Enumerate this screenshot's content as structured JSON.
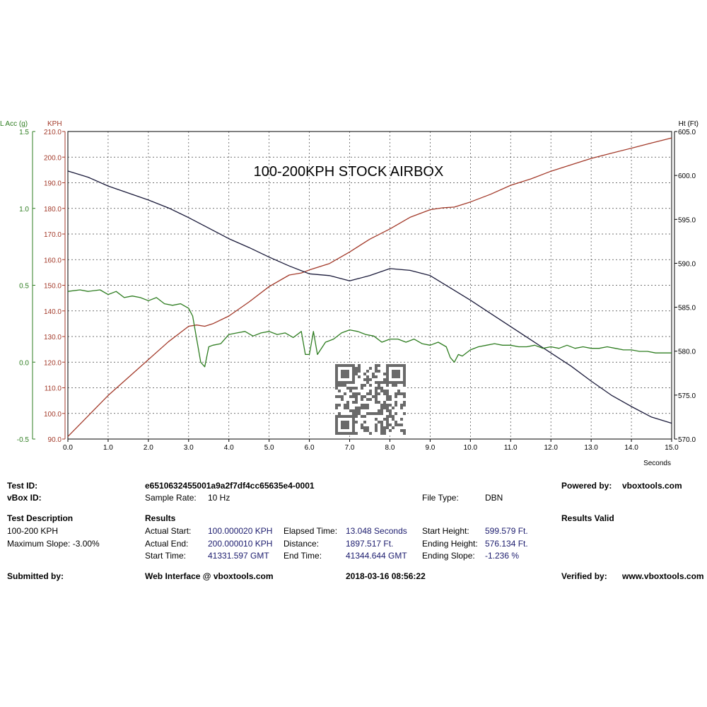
{
  "chart_data": {
    "type": "line",
    "title": "100-200KPH STOCK AIRBOX",
    "xlabel": "Seconds",
    "xlim": [
      0,
      15
    ],
    "x_ticks": [
      "0.0",
      "1.0",
      "2.0",
      "3.0",
      "4.0",
      "5.0",
      "6.0",
      "7.0",
      "8.0",
      "9.0",
      "10.0",
      "11.0",
      "12.0",
      "13.0",
      "14.0",
      "15.0"
    ],
    "grid": true,
    "axes": {
      "lacc": {
        "label": "L Acc (g)",
        "range": [
          -0.5,
          1.5
        ],
        "ticks": [
          "1.5",
          "1.0",
          "0.5",
          "0.0",
          "-0.5"
        ],
        "tick_values": [
          1.5,
          1.0,
          0.5,
          0.0,
          -0.5
        ],
        "color": "#2e7d20"
      },
      "kph": {
        "label": "KPH",
        "range": [
          90,
          210
        ],
        "ticks": [
          "210.0",
          "200.0",
          "190.0",
          "180.0",
          "170.0",
          "160.0",
          "150.0",
          "140.0",
          "130.0",
          "120.0",
          "110.0",
          "100.0",
          "90.0"
        ],
        "tick_values": [
          210,
          200,
          190,
          180,
          170,
          160,
          150,
          140,
          130,
          120,
          110,
          100,
          90
        ],
        "color": "#a33a2a"
      },
      "ht": {
        "label": "Ht (Ft)",
        "range": [
          570,
          605
        ],
        "ticks": [
          "605.0",
          "600.0",
          "595.0",
          "590.0",
          "585.0",
          "580.0",
          "575.0",
          "570.0"
        ],
        "tick_values": [
          605,
          600,
          595,
          590,
          585,
          580,
          575,
          570
        ],
        "color": "#000000"
      }
    },
    "series": [
      {
        "axis": "kph",
        "color": "#a33a2a",
        "x": [
          0,
          0.5,
          1,
          1.5,
          2,
          2.5,
          3,
          3.2,
          3.4,
          3.6,
          4,
          4.5,
          5,
          5.5,
          5.8,
          6,
          6.5,
          7,
          7.5,
          8,
          8.5,
          9,
          9.3,
          9.6,
          10,
          10.5,
          11,
          11.5,
          12,
          12.5,
          13,
          13.5,
          14,
          14.5,
          15
        ],
        "values": [
          91,
          99,
          107,
          114,
          121,
          128,
          134,
          134.5,
          134,
          135,
          138,
          143.5,
          149.5,
          154,
          154.8,
          156,
          158.5,
          163,
          168,
          172,
          176.5,
          179.5,
          180.2,
          180.5,
          182.5,
          185.5,
          189,
          191.5,
          194.5,
          197,
          199.5,
          201.5,
          203.5,
          205.5,
          207.5
        ]
      },
      {
        "axis": "ht",
        "color": "#1a1a3a",
        "x": [
          0,
          0.5,
          1,
          1.5,
          2,
          2.5,
          3,
          3.5,
          4,
          4.5,
          5,
          5.5,
          6,
          6.5,
          7,
          7.5,
          8,
          8.5,
          9,
          9.5,
          10,
          10.5,
          11,
          11.5,
          12,
          12.5,
          13,
          13.5,
          14,
          14.5,
          15
        ],
        "values": [
          600.5,
          599.8,
          598.8,
          598,
          597.2,
          596.3,
          595.2,
          594,
          592.8,
          591.8,
          590.7,
          589.7,
          588.8,
          588.6,
          588.0,
          588.6,
          589.4,
          589.2,
          588.6,
          587.2,
          585.8,
          584.3,
          582.8,
          581.3,
          579.8,
          578.3,
          576.6,
          575.0,
          573.7,
          572.5,
          571.8
        ]
      },
      {
        "axis": "lacc",
        "color": "#2e7d20",
        "x": [
          0,
          0.3,
          0.5,
          0.8,
          1,
          1.2,
          1.4,
          1.6,
          1.8,
          2,
          2.2,
          2.4,
          2.6,
          2.8,
          3,
          3.1,
          3.2,
          3.3,
          3.4,
          3.5,
          3.6,
          3.8,
          4,
          4.2,
          4.4,
          4.6,
          4.8,
          5,
          5.2,
          5.4,
          5.6,
          5.8,
          5.9,
          6,
          6.1,
          6.2,
          6.4,
          6.6,
          6.8,
          7,
          7.2,
          7.4,
          7.6,
          7.8,
          8,
          8.2,
          8.4,
          8.6,
          8.8,
          9,
          9.2,
          9.4,
          9.5,
          9.6,
          9.7,
          9.8,
          10,
          10.2,
          10.4,
          10.6,
          10.8,
          11,
          11.2,
          11.4,
          11.6,
          11.8,
          12,
          12.2,
          12.4,
          12.6,
          12.8,
          13,
          13.2,
          13.4,
          13.6,
          13.8,
          14,
          14.2,
          14.4,
          14.6,
          14.8,
          15
        ],
        "values": [
          0.46,
          0.47,
          0.46,
          0.47,
          0.44,
          0.46,
          0.42,
          0.43,
          0.42,
          0.4,
          0.42,
          0.38,
          0.37,
          0.38,
          0.35,
          0.3,
          0.15,
          0.0,
          -0.03,
          0.1,
          0.11,
          0.12,
          0.18,
          0.19,
          0.2,
          0.17,
          0.19,
          0.2,
          0.18,
          0.19,
          0.16,
          0.2,
          0.05,
          0.05,
          0.2,
          0.05,
          0.13,
          0.15,
          0.19,
          0.21,
          0.2,
          0.18,
          0.17,
          0.13,
          0.15,
          0.15,
          0.13,
          0.15,
          0.12,
          0.11,
          0.13,
          0.1,
          0.03,
          0.0,
          0.05,
          0.04,
          0.08,
          0.1,
          0.11,
          0.12,
          0.11,
          0.11,
          0.1,
          0.1,
          0.11,
          0.09,
          0.1,
          0.09,
          0.11,
          0.09,
          0.1,
          0.09,
          0.09,
          0.1,
          0.09,
          0.08,
          0.08,
          0.07,
          0.07,
          0.06,
          0.06,
          0.06
        ]
      }
    ]
  },
  "report": {
    "test_id_label": "Test ID:",
    "test_id_value": "e6510632455001a9a2f7df4cc65635e4-0001",
    "powered_by_label": "Powered by:",
    "powered_by_value": "vboxtools.com",
    "vbox_id_label": "vBox ID:",
    "sample_rate_label": "Sample Rate:",
    "sample_rate_value": "10 Hz",
    "file_type_label": "File Type:",
    "file_type_value": "DBN",
    "test_description_label": "Test Description",
    "results_label": "Results",
    "results_valid_label": "Results Valid",
    "desc_line1": "100-200 KPH",
    "desc_line2": "Maximum Slope:  -3.00%",
    "actual_start_label": "Actual Start:",
    "actual_start_value": "100.000020 KPH",
    "elapsed_time_label": "Elapsed Time:",
    "elapsed_time_value": "13.048 Seconds",
    "start_height_label": "Start Height:",
    "start_height_value": "599.579 Ft.",
    "actual_end_label": "Actual End:",
    "actual_end_value": "200.000010 KPH",
    "distance_label": "Distance:",
    "distance_value": "1897.517 Ft.",
    "ending_height_label": "Ending Height:",
    "ending_height_value": "576.134 Ft.",
    "start_time_label": "Start Time:",
    "start_time_value": "41331.597 GMT",
    "end_time_label": "End Time:",
    "end_time_value": "41344.644 GMT",
    "ending_slope_label": "Ending Slope:",
    "ending_slope_value": "-1.236 %",
    "submitted_by_label": "Submitted by:",
    "web_interface_label": "Web Interface @ vboxtools.com",
    "datetime_value": "2018-03-16 08:56:22",
    "verified_by_label": "Verified by:",
    "verified_by_value": "www.vboxtools.com"
  }
}
